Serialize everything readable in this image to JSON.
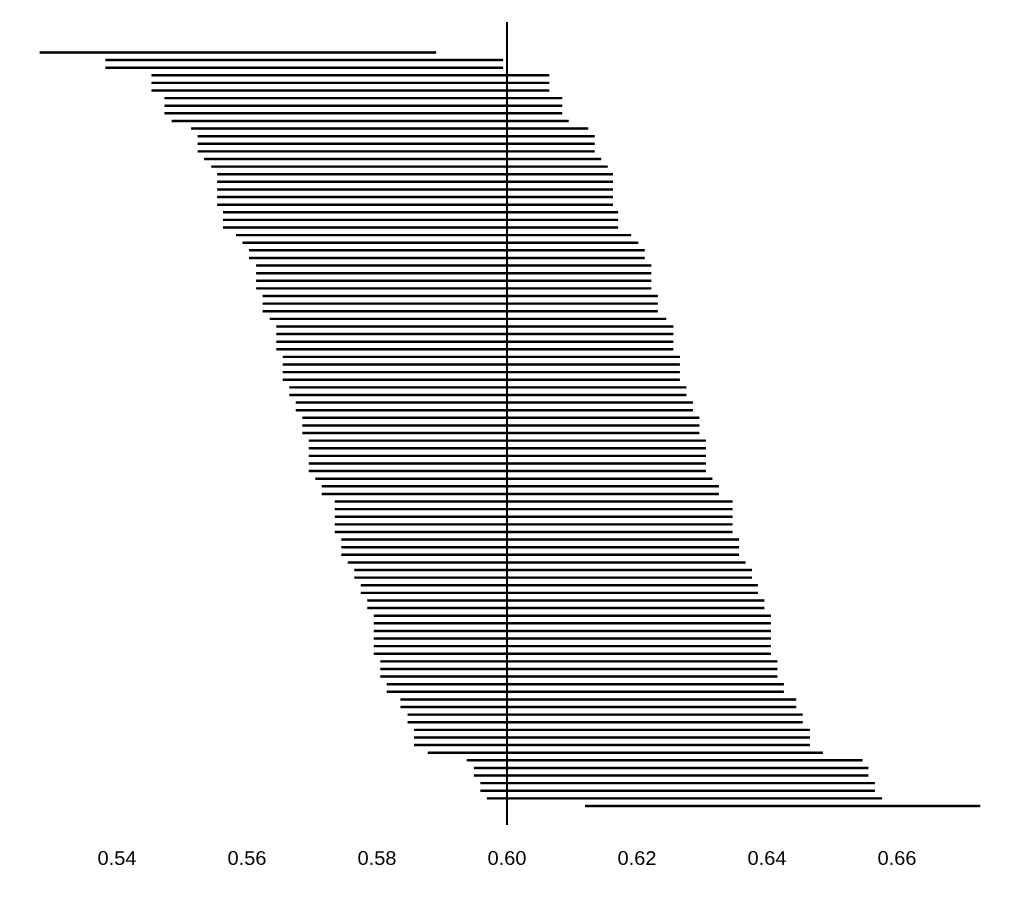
{
  "chart_data": {
    "type": "bar",
    "orientation": "horizontal",
    "color": "#000000",
    "categories": [
      null,
      null,
      null,
      null,
      null,
      null,
      null,
      null,
      null,
      null,
      null,
      null,
      null,
      null,
      null,
      null,
      null,
      null,
      null,
      null,
      null,
      null,
      null,
      null,
      null,
      null,
      null,
      null,
      null,
      null,
      null,
      null,
      null,
      null,
      null,
      null,
      null,
      null,
      null,
      null,
      null,
      null,
      null,
      null,
      null,
      null,
      null,
      null,
      null,
      null,
      null,
      null,
      null,
      null,
      null,
      null,
      null,
      null,
      null,
      null,
      null,
      null,
      null,
      null,
      null,
      null,
      null,
      null,
      null,
      null,
      null,
      null,
      null,
      null,
      null,
      null,
      null,
      null,
      null,
      null,
      null,
      null,
      null,
      null,
      null,
      null,
      null,
      null,
      null,
      null,
      null,
      null,
      null,
      null,
      null,
      null,
      null,
      null,
      null,
      null
    ],
    "base": [
      0.5281,
      0.5382,
      0.5382,
      0.5453,
      0.5453,
      0.5453,
      0.5473,
      0.5473,
      0.5473,
      0.5484,
      0.5514,
      0.5524,
      0.5524,
      0.5524,
      0.5534,
      0.5545,
      0.5554,
      0.5554,
      0.5554,
      0.5554,
      0.5554,
      0.5563,
      0.5563,
      0.5563,
      0.5583,
      0.5593,
      0.5603,
      0.5603,
      0.5614,
      0.5614,
      0.5614,
      0.5614,
      0.5624,
      0.5624,
      0.5624,
      0.5635,
      0.5645,
      0.5645,
      0.5645,
      0.5645,
      0.5655,
      0.5655,
      0.5655,
      0.5655,
      0.5665,
      0.5665,
      0.5675,
      0.5675,
      0.5685,
      0.5685,
      0.5685,
      0.5695,
      0.5695,
      0.5695,
      0.5695,
      0.5695,
      0.5705,
      0.5715,
      0.5715,
      0.5735,
      0.5735,
      0.5735,
      0.5735,
      0.5735,
      0.5745,
      0.5745,
      0.5745,
      0.5755,
      0.5765,
      0.5765,
      0.5775,
      0.5775,
      0.5785,
      0.5785,
      0.5795,
      0.5795,
      0.5795,
      0.5795,
      0.5795,
      0.5795,
      0.5805,
      0.5805,
      0.5805,
      0.5815,
      0.5815,
      0.5836,
      0.5836,
      0.5847,
      0.5847,
      0.5857,
      0.5857,
      0.5857,
      0.5878,
      0.5938,
      0.5949,
      0.5949,
      0.5959,
      0.5959,
      0.5969,
      0.612
    ],
    "values": [
      0.061,
      0.0612,
      0.0612,
      0.0612,
      0.0612,
      0.0612,
      0.0612,
      0.0612,
      0.0612,
      0.0611,
      0.0611,
      0.0611,
      0.0611,
      0.0611,
      0.0611,
      0.061,
      0.0609,
      0.0609,
      0.0609,
      0.0609,
      0.0609,
      0.0608,
      0.0608,
      0.0608,
      0.0608,
      0.0609,
      0.0609,
      0.0609,
      0.0608,
      0.0608,
      0.0608,
      0.0608,
      0.0608,
      0.0608,
      0.0608,
      0.061,
      0.0611,
      0.0611,
      0.0611,
      0.0611,
      0.0611,
      0.0611,
      0.0611,
      0.0611,
      0.0611,
      0.0611,
      0.0611,
      0.0611,
      0.0611,
      0.0611,
      0.0611,
      0.0611,
      0.0611,
      0.0611,
      0.0611,
      0.0611,
      0.0611,
      0.0611,
      0.0611,
      0.0612,
      0.0612,
      0.0612,
      0.0612,
      0.0612,
      0.0612,
      0.0612,
      0.0612,
      0.0612,
      0.0612,
      0.0612,
      0.0611,
      0.0611,
      0.0611,
      0.0611,
      0.0611,
      0.0611,
      0.0611,
      0.0611,
      0.0611,
      0.0611,
      0.0611,
      0.0611,
      0.0611,
      0.0611,
      0.0611,
      0.0609,
      0.0609,
      0.0608,
      0.0608,
      0.0609,
      0.0609,
      0.0609,
      0.0608,
      0.0609,
      0.0607,
      0.0607,
      0.0607,
      0.0607,
      0.0608,
      0.0608
    ],
    "xlim": [
      0.528,
      0.673
    ],
    "xticks": [
      {
        "value": 0.54,
        "label": "0.54"
      },
      {
        "value": 0.56,
        "label": "0.56"
      },
      {
        "value": 0.58,
        "label": "0.58"
      },
      {
        "value": 0.6,
        "label": "0.60"
      },
      {
        "value": 0.62,
        "label": "0.62"
      },
      {
        "value": 0.64,
        "label": "0.64"
      },
      {
        "value": 0.66,
        "label": "0.66"
      }
    ],
    "ref_lines": [
      {
        "axis": "x",
        "value": 0.6,
        "color": "#000000"
      }
    ]
  }
}
